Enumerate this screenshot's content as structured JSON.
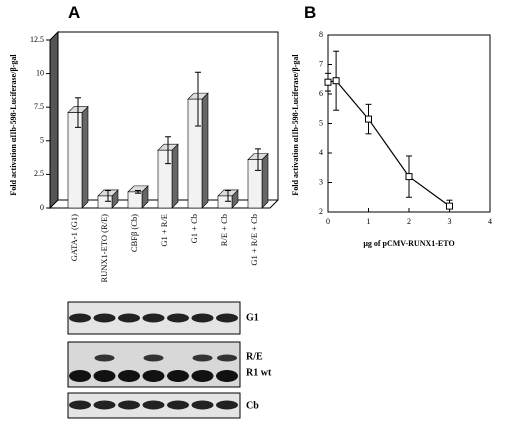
{
  "chart_data": [
    {
      "type": "bar3d",
      "panel_label": "A",
      "y_label": "Fold activation αIIb-598-Luciferase/β-gal",
      "categories": [
        "GATA-1 (G1)",
        "RUNX1-ETO (R/E)",
        "CBFβ (Cb)",
        "G1 + R/E",
        "G1 + Cb",
        "R/E + Cb",
        "G1 + R/E + Cb"
      ],
      "values": [
        7.1,
        0.9,
        1.2,
        4.3,
        8.1,
        0.9,
        3.6
      ],
      "errors": [
        1.1,
        0.4,
        0.1,
        1.0,
        2.0,
        0.4,
        0.8
      ],
      "color": "#f2f2f2",
      "ylim": [
        0,
        12.5
      ],
      "yticks": [
        0,
        2.5,
        5,
        7.5,
        10,
        12.5
      ]
    },
    {
      "type": "line",
      "panel_label": "B",
      "y_label": "Fold activation αIIb-598-Luciferase/β-gal",
      "x_label": "μg of pCMV-RUNX1-ETO",
      "x": [
        0,
        0.2,
        1,
        2,
        3
      ],
      "values": [
        6.4,
        6.45,
        5.15,
        3.2,
        2.2
      ],
      "errors": [
        0.3,
        1.0,
        0.5,
        0.7,
        0.2
      ],
      "color": "#000000",
      "xlim": [
        0,
        4
      ],
      "xticks": [
        0,
        1,
        2,
        3,
        4
      ],
      "ylim": [
        2,
        8
      ],
      "yticks": [
        2,
        3,
        4,
        5,
        6,
        7,
        8
      ]
    }
  ],
  "blot_labels": [
    "G1",
    "R/E",
    "R1 wt",
    "Cb"
  ]
}
